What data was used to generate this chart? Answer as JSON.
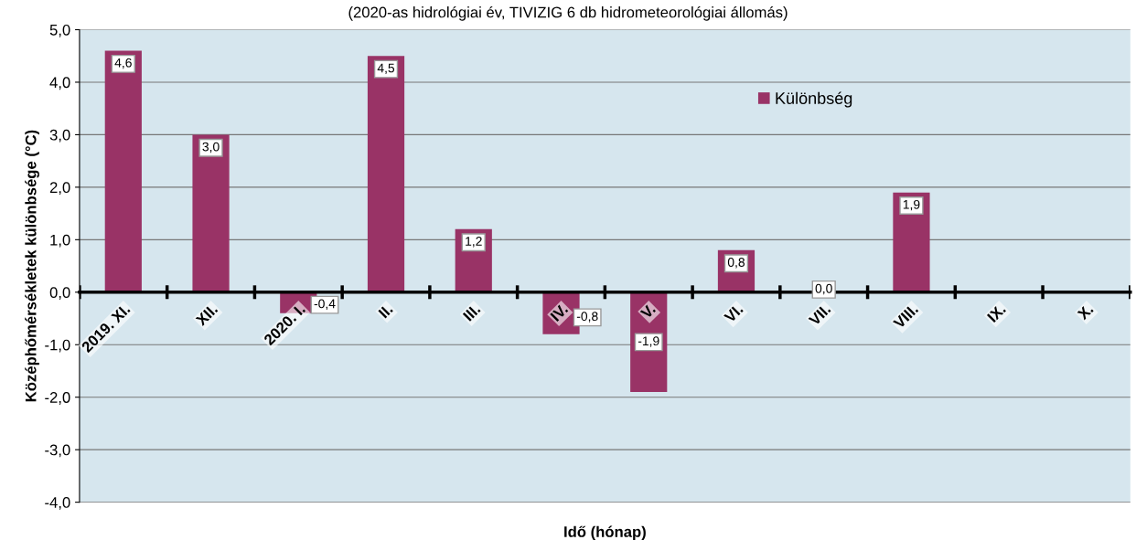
{
  "chart_data": {
    "type": "bar",
    "subtitle": "(2020-as hidrológiai év, TIVIZIG 6 db hidrometeorológiai állomás)",
    "xlabel": "Idő (hónap)",
    "ylabel": "Középhőmérsékletek különbsége (°C)",
    "categories": [
      "2019. XI.",
      "XII.",
      "2020. I.",
      "II.",
      "III.",
      "IV.",
      "V.",
      "VI.",
      "VII.",
      "VIII.",
      "IX.",
      "X."
    ],
    "series": [
      {
        "name": "Különbség",
        "color": "#993366",
        "values": [
          4.6,
          3.0,
          -0.4,
          4.5,
          1.2,
          -0.8,
          -1.9,
          0.8,
          0.0,
          1.9,
          null,
          null
        ],
        "value_labels": [
          "4,6",
          "3,0",
          "-0,4",
          "4,5",
          "1,2",
          "-0,8",
          "-1,9",
          "0,8",
          "0,0",
          "1,9",
          null,
          null
        ]
      }
    ],
    "ylim": [
      -4.0,
      5.0
    ],
    "yticks": [
      {
        "value": -4,
        "label": "-4,0"
      },
      {
        "value": -3,
        "label": "-3,0"
      },
      {
        "value": -2,
        "label": "-2,0"
      },
      {
        "value": -1,
        "label": "-1,0"
      },
      {
        "value": 0,
        "label": "0,0"
      },
      {
        "value": 1,
        "label": "1,0"
      },
      {
        "value": 2,
        "label": "2,0"
      },
      {
        "value": 3,
        "label": "3,0"
      },
      {
        "value": 4,
        "label": "4,0"
      },
      {
        "value": 5,
        "label": "5,0"
      }
    ],
    "grid": "y",
    "legend": "top right"
  }
}
